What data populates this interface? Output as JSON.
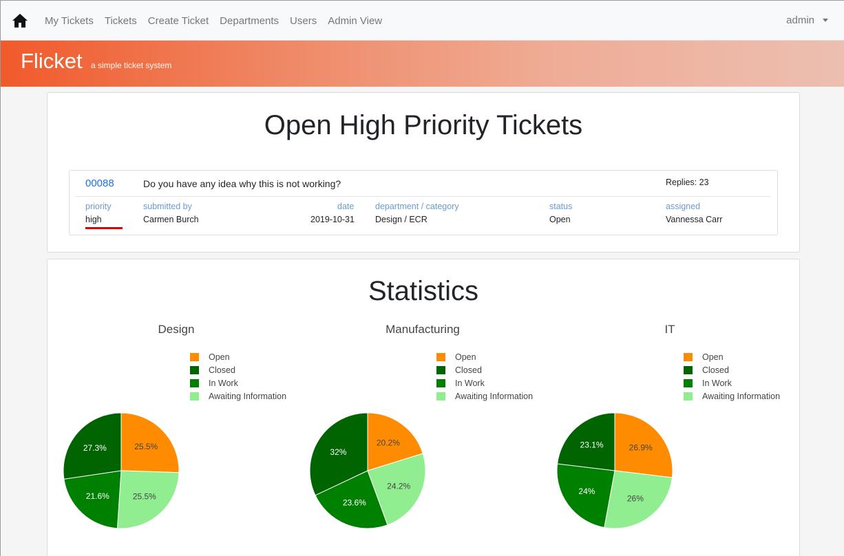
{
  "nav": {
    "links": [
      "My Tickets",
      "Tickets",
      "Create Ticket",
      "Departments",
      "Users",
      "Admin View"
    ],
    "user": "admin"
  },
  "banner": {
    "brand": "Flicket",
    "tagline": "a simple ticket system"
  },
  "high_priority": {
    "title": "Open High Priority Tickets",
    "ticket": {
      "id": "00088",
      "title": "Do you have any idea why this is not working?",
      "replies": "Replies: 23",
      "labels": {
        "priority": "priority",
        "submitted_by": "submitted by",
        "date": "date",
        "department": "department / category",
        "status": "status",
        "assigned": "assigned"
      },
      "values": {
        "priority": "high",
        "submitted_by": "Carmen Burch",
        "date": "2019-10-31",
        "department": "Design / ECR",
        "status": "Open",
        "assigned": "Vannessa Carr"
      }
    }
  },
  "statistics": {
    "title": "Statistics",
    "colors": {
      "Open": "#ff8c00",
      "Closed": "#006400",
      "In Work": "#008000",
      "Awaiting Information": "#90ee90"
    }
  },
  "chart_data": [
    {
      "type": "pie",
      "title": "Design",
      "categories": [
        "Open",
        "Awaiting Information",
        "In Work",
        "Closed"
      ],
      "values": [
        25.5,
        25.5,
        21.6,
        27.3
      ],
      "labels": [
        "25.5%",
        "25.5%",
        "21.6%",
        "27.3%"
      ],
      "legend": [
        "Open",
        "Closed",
        "In Work",
        "Awaiting Information"
      ]
    },
    {
      "type": "pie",
      "title": "Manufacturing",
      "categories": [
        "Open",
        "Awaiting Information",
        "In Work",
        "Closed"
      ],
      "values": [
        20.2,
        24.2,
        23.6,
        32
      ],
      "labels": [
        "20.2%",
        "24.2%",
        "23.6%",
        "32%"
      ],
      "legend": [
        "Open",
        "Closed",
        "In Work",
        "Awaiting Information"
      ]
    },
    {
      "type": "pie",
      "title": "IT",
      "categories": [
        "Open",
        "Awaiting Information",
        "In Work",
        "Closed"
      ],
      "values": [
        26.9,
        26,
        24,
        23.1
      ],
      "labels": [
        "26.9%",
        "26%",
        "24%",
        "23.1%"
      ],
      "legend": [
        "Open",
        "Closed",
        "In Work",
        "Awaiting Information"
      ]
    }
  ]
}
